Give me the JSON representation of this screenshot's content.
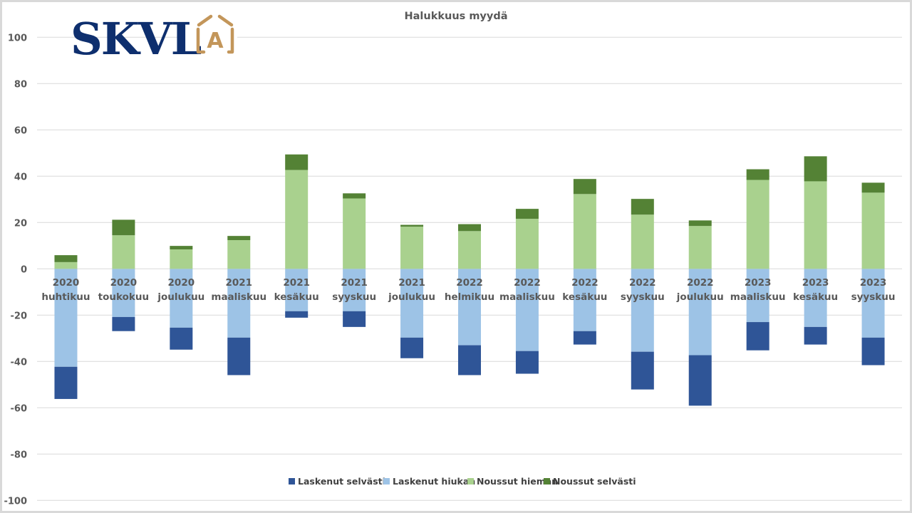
{
  "logo": {
    "text": "SKVL",
    "badge_letter": "A",
    "text_color": "#0e2f6e",
    "badge_color": "#c3965a"
  },
  "chart_data": {
    "type": "bar",
    "stacked": true,
    "title": "Halukkuus myydä",
    "xlabel": "",
    "ylabel": "",
    "ylim": [
      -100,
      100
    ],
    "yticks": [
      100,
      80,
      60,
      40,
      20,
      0,
      -20,
      -40,
      -60,
      -80,
      -100
    ],
    "grid": true,
    "legend_position": "bottom",
    "categories": [
      [
        "2020",
        "huhtikuu"
      ],
      [
        "2020",
        "toukokuu"
      ],
      [
        "2020",
        "joulukuu"
      ],
      [
        "2021",
        "maaliskuu"
      ],
      [
        "2021",
        "kesäkuu"
      ],
      [
        "2021",
        "syyskuu"
      ],
      [
        "2021",
        "joulukuu"
      ],
      [
        "2022",
        "helmikuu"
      ],
      [
        "2022",
        "maaliskuu"
      ],
      [
        "2022",
        "kesäkuu"
      ],
      [
        "2022",
        "syyskuu"
      ],
      [
        "2022",
        "joulukuu"
      ],
      [
        "2023",
        "maaliskuu"
      ],
      [
        "2023",
        "kesäkuu"
      ],
      [
        "2023",
        "syyskuu"
      ]
    ],
    "series": [
      {
        "name": "Laskenut selvästi",
        "color": "#2f5597",
        "values": [
          -13.9,
          -6.1,
          -9.5,
          -16.2,
          -2.8,
          -6.8,
          -8.9,
          -12.9,
          -9.8,
          -5.8,
          -16.3,
          -21.8,
          -12.2,
          -7.6,
          -11.9
        ]
      },
      {
        "name": "Laskenut hiukan",
        "color": "#9dc3e6",
        "values": [
          -42.3,
          -20.8,
          -25.4,
          -29.7,
          -18.3,
          -18.3,
          -29.7,
          -33.0,
          -35.5,
          -26.9,
          -35.8,
          -37.3,
          -23.0,
          -25.1,
          -29.7
        ]
      },
      {
        "name": "Noussut hieman",
        "color": "#a9d18e",
        "values": [
          2.9,
          14.5,
          8.4,
          12.4,
          42.7,
          30.4,
          18.2,
          16.3,
          21.6,
          32.3,
          23.4,
          18.5,
          38.4,
          37.8,
          32.9
        ]
      },
      {
        "name": "Noussut selvästi",
        "color": "#548235",
        "values": [
          3.0,
          6.7,
          1.5,
          1.8,
          6.7,
          2.2,
          0.8,
          3.0,
          4.3,
          6.5,
          6.8,
          2.4,
          4.6,
          10.8,
          4.3
        ]
      }
    ]
  }
}
